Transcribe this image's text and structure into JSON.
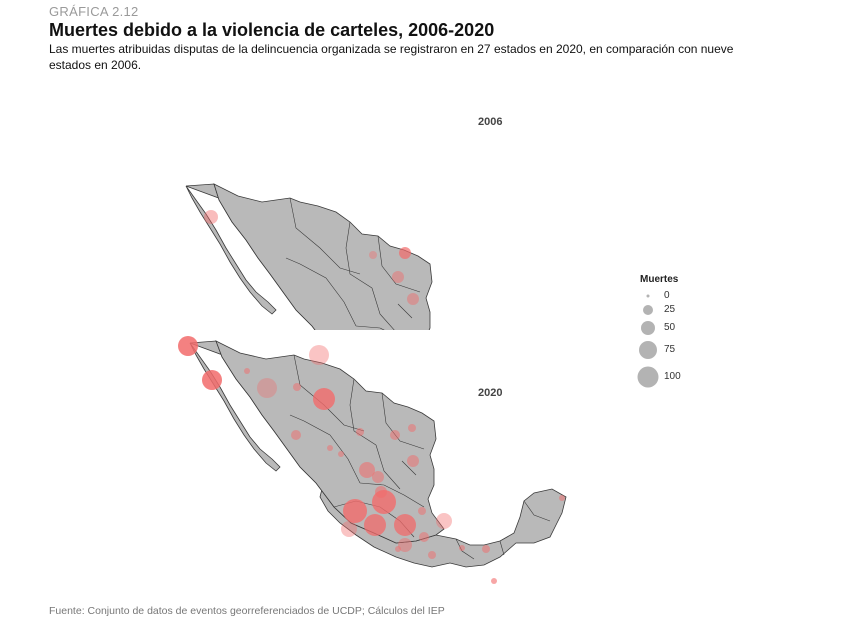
{
  "figure": {
    "number": "GRÁFICA 2.12",
    "title": "Muertes debido a la violencia de carteles, 2006-2020",
    "subtitle": "Las muertes atribuidas disputas de la delincuencia organizada se registraron en 27 estados en 2020, en comparación con nueve estados en 2006.",
    "source": "Fuente: Conjunto de datos de eventos georreferenciados de UCDP; Cálculos del IEP"
  },
  "colors": {
    "land": "#b9b9b9",
    "border": "#3a3a3a",
    "bubble": "#f26b6b",
    "legend_bubble": "#b3b3b3"
  },
  "legend": {
    "title": "Muertes",
    "items": [
      {
        "label": "0",
        "value": 0
      },
      {
        "label": "25",
        "value": 25
      },
      {
        "label": "50",
        "value": 50
      },
      {
        "label": "75",
        "value": 75
      },
      {
        "label": "100",
        "value": 100
      }
    ]
  },
  "maps": [
    {
      "label": "2006"
    },
    {
      "label": "2020"
    }
  ]
}
